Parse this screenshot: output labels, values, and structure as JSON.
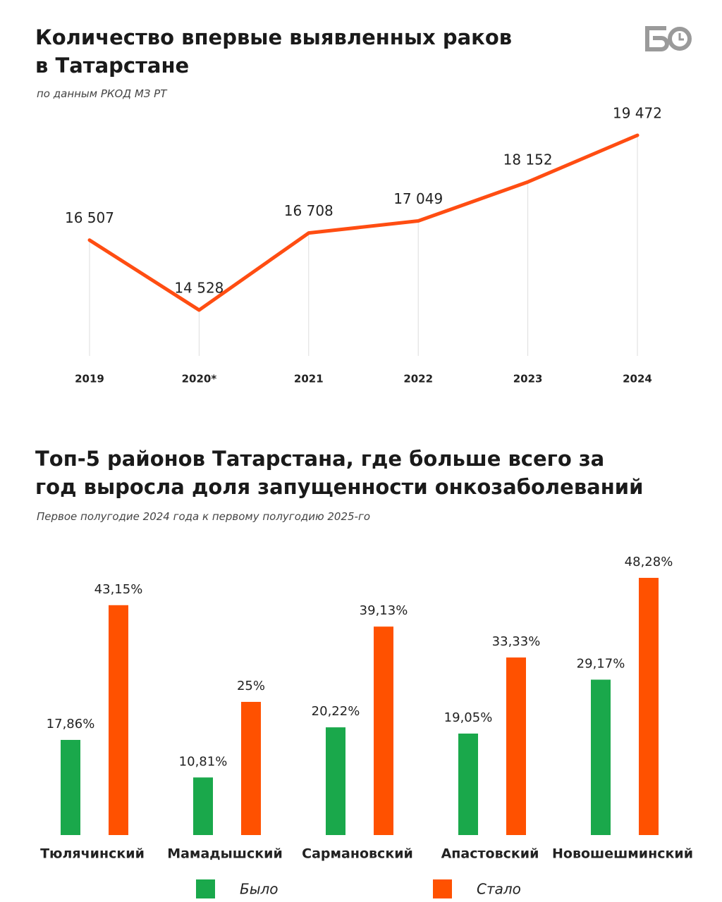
{
  "chart_data": [
    {
      "type": "line",
      "title": "Количество впервые выявленных раков в Татарстане",
      "subtitle": "по данным РКОД МЗ РТ",
      "categories": [
        "2019",
        "2020*",
        "2021",
        "2022",
        "2023",
        "2024"
      ],
      "values": [
        16507,
        14528,
        16708,
        17049,
        18152,
        19472
      ],
      "value_labels": [
        "16 507",
        "14 528",
        "16 708",
        "17 049",
        "18 152",
        "19 472"
      ],
      "color": "#ff4d12"
    },
    {
      "type": "bar",
      "title": "Топ-5 районов Татарстана, где больше всего за год выросла доля запущенности онкозаболеваний",
      "subtitle": "Первое полугодие 2024 года к первому полугодию 2025-го",
      "categories": [
        "Тюлячинский",
        "Мамадышский",
        "Сармановский",
        "Апастовский",
        "Новошешминский"
      ],
      "series": [
        {
          "name": "Было",
          "color": "#1aa84b",
          "values": [
            17.86,
            10.81,
            20.22,
            19.05,
            29.17
          ],
          "value_labels": [
            "17,86%",
            "10,81%",
            "20,22%",
            "19,05%",
            "29,17%"
          ]
        },
        {
          "name": "Стало",
          "color": "#ff5100",
          "values": [
            43.15,
            25,
            39.13,
            33.33,
            48.28
          ],
          "value_labels": [
            "43,15%",
            "25%",
            "39,13%",
            "33,33%",
            "48,28%"
          ]
        }
      ]
    }
  ]
}
